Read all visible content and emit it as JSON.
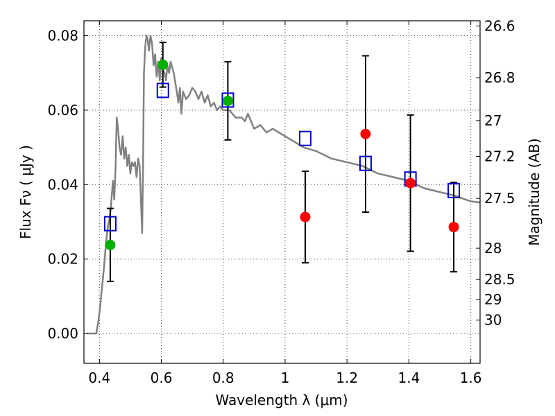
{
  "chart_data": {
    "type": "scatter",
    "xlabel": "Wavelength  λ (μm)",
    "ylabel": "Flux  Fν  ( μJy )",
    "ylabel_right": "Magnitude (AB)",
    "xlim": [
      0.35,
      1.63
    ],
    "ylim": [
      -0.008,
      0.084
    ],
    "x_ticks": [
      0.4,
      0.6,
      0.8,
      1.0,
      1.2,
      1.4,
      1.6
    ],
    "x_tick_labels": [
      "0.4",
      "0.6",
      "0.8",
      "1",
      "1.2",
      "1.4",
      "1.6"
    ],
    "y_ticks": [
      0.0,
      0.02,
      0.04,
      0.06,
      0.08
    ],
    "y_tick_labels": [
      "0.00",
      "0.02",
      "0.04",
      "0.06",
      "0.08"
    ],
    "mag_ticks": [
      {
        "label": "26.6",
        "flux": 0.0826
      },
      {
        "label": "26.8",
        "flux": 0.0687
      },
      {
        "label": "27",
        "flux": 0.0572
      },
      {
        "label": "27.2",
        "flux": 0.0476
      },
      {
        "label": "27.5",
        "flux": 0.0363
      },
      {
        "label": "28",
        "flux": 0.0229
      },
      {
        "label": "28.5",
        "flux": 0.0145
      },
      {
        "label": "29",
        "flux": 0.0091
      },
      {
        "label": "30",
        "flux": 0.0036
      }
    ],
    "grid": true,
    "series": [
      {
        "kind": "line",
        "color": "#808080",
        "x": [
          0.36,
          0.39,
          0.398,
          0.402,
          0.408,
          0.415,
          0.422,
          0.428,
          0.433,
          0.436,
          0.44,
          0.444,
          0.448,
          0.452,
          0.456,
          0.46,
          0.465,
          0.47,
          0.475,
          0.48,
          0.485,
          0.49,
          0.495,
          0.5,
          0.505,
          0.51,
          0.515,
          0.52,
          0.525,
          0.53,
          0.535,
          0.538,
          0.541,
          0.544,
          0.548,
          0.552,
          0.556,
          0.56,
          0.565,
          0.57,
          0.575,
          0.58,
          0.585,
          0.59,
          0.595,
          0.6,
          0.605,
          0.61,
          0.615,
          0.62,
          0.625,
          0.63,
          0.64,
          0.65,
          0.655,
          0.66,
          0.665,
          0.67,
          0.68,
          0.69,
          0.7,
          0.71,
          0.72,
          0.73,
          0.74,
          0.75,
          0.76,
          0.77,
          0.78,
          0.79,
          0.8,
          0.82,
          0.84,
          0.86,
          0.87,
          0.88,
          0.9,
          0.92,
          0.94,
          0.96,
          0.98,
          1.0,
          1.02,
          1.04,
          1.06,
          1.1,
          1.15,
          1.2,
          1.25,
          1.3,
          1.35,
          1.4,
          1.45,
          1.5,
          1.55,
          1.6,
          1.63
        ],
        "y": [
          0.0,
          0.0,
          0.004,
          0.007,
          0.012,
          0.018,
          0.025,
          0.029,
          0.031,
          0.033,
          0.037,
          0.041,
          0.036,
          0.044,
          0.058,
          0.055,
          0.05,
          0.048,
          0.053,
          0.047,
          0.05,
          0.045,
          0.048,
          0.043,
          0.046,
          0.045,
          0.046,
          0.042,
          0.047,
          0.045,
          0.034,
          0.027,
          0.045,
          0.07,
          0.077,
          0.08,
          0.079,
          0.076,
          0.08,
          0.078,
          0.072,
          0.075,
          0.069,
          0.073,
          0.068,
          0.074,
          0.071,
          0.07,
          0.068,
          0.072,
          0.07,
          0.073,
          0.07,
          0.065,
          0.062,
          0.066,
          0.059,
          0.065,
          0.063,
          0.064,
          0.066,
          0.065,
          0.063,
          0.065,
          0.062,
          0.064,
          0.061,
          0.062,
          0.06,
          0.061,
          0.06,
          0.06,
          0.058,
          0.058,
          0.057,
          0.059,
          0.055,
          0.056,
          0.054,
          0.055,
          0.054,
          0.053,
          0.052,
          0.051,
          0.05,
          0.049,
          0.047,
          0.046,
          0.045,
          0.043,
          0.042,
          0.041,
          0.039,
          0.038,
          0.037,
          0.0355,
          0.0352
        ]
      },
      {
        "kind": "marker",
        "marker": "square",
        "color": "#0000cc",
        "x": [
          0.435,
          0.605,
          0.815,
          1.065,
          1.26,
          1.405,
          1.545
        ],
        "y": [
          0.0295,
          0.0653,
          0.0627,
          0.0524,
          0.0457,
          0.0415,
          0.0384
        ]
      },
      {
        "kind": "marker",
        "marker": "circle",
        "color": "#00b000",
        "x": [
          0.435,
          0.605,
          0.815
        ],
        "y": [
          0.0238,
          0.0722,
          0.0625
        ],
        "err": [
          0.0098,
          0.006,
          0.0105
        ]
      },
      {
        "kind": "marker",
        "marker": "circle",
        "color": "#ff0000",
        "x": [
          1.065,
          1.26,
          1.405,
          1.545
        ],
        "y": [
          0.0313,
          0.0536,
          0.0404,
          0.0286
        ],
        "err": [
          0.0123,
          0.021,
          0.0183,
          0.012
        ]
      }
    ]
  }
}
